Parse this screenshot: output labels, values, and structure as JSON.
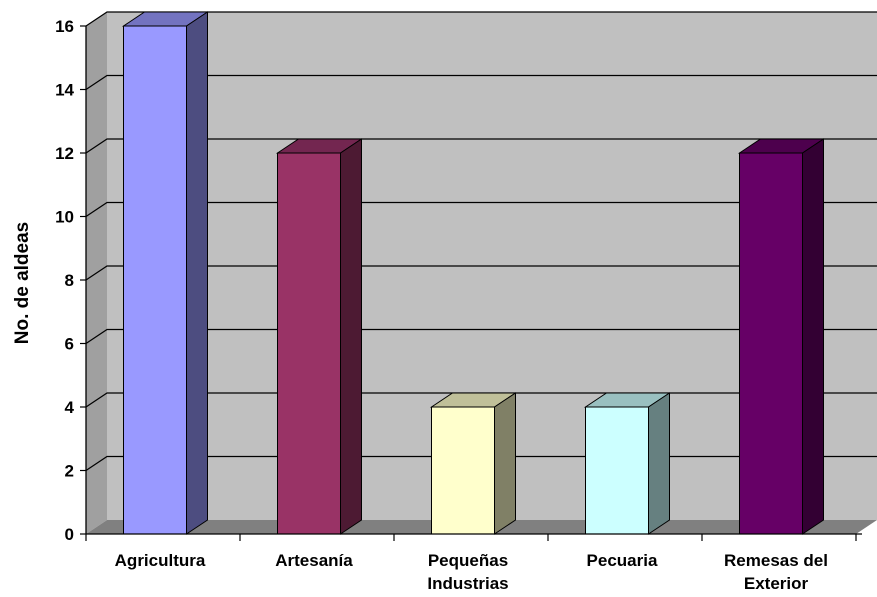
{
  "chart_data": {
    "type": "bar",
    "title": "",
    "xlabel": "",
    "ylabel": "No. de aldeas",
    "ylim": [
      0,
      16
    ],
    "yticks": [
      0,
      2,
      4,
      6,
      8,
      10,
      12,
      14,
      16
    ],
    "grid": true,
    "three_d": true,
    "categories": [
      [
        "Agricultura"
      ],
      [
        "Artesanía"
      ],
      [
        "Pequeñas",
        "Industrias"
      ],
      [
        "Pecuaria"
      ],
      [
        "Remesas del",
        "Exterior"
      ]
    ],
    "values": [
      16,
      12,
      4,
      4,
      12
    ],
    "colors": [
      {
        "front": "#9999FF",
        "top": "#7373C0",
        "side": "#4D4D80"
      },
      {
        "front": "#993366",
        "top": "#732650",
        "side": "#4D1A33"
      },
      {
        "front": "#FFFFCC",
        "top": "#C0C099",
        "side": "#808066"
      },
      {
        "front": "#CCFFFF",
        "top": "#99C0C0",
        "side": "#668080"
      },
      {
        "front": "#660066",
        "top": "#4D004D",
        "side": "#330033"
      }
    ],
    "plot_colors": {
      "wall": "#C0C0C0",
      "side_wall": "#A0A0A0",
      "floor": "#808080",
      "gridline": "#000000"
    }
  }
}
